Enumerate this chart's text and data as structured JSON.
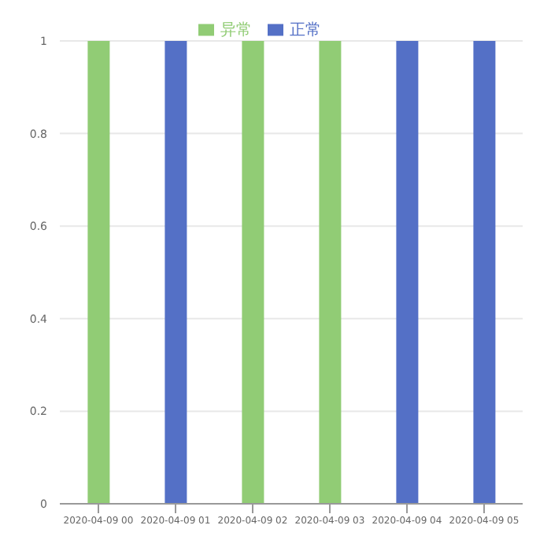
{
  "chart_data": {
    "type": "bar",
    "stacked": true,
    "categories": [
      "2020-04-09 00",
      "2020-04-09 01",
      "2020-04-09 02",
      "2020-04-09 03",
      "2020-04-09 04",
      "2020-04-09 05"
    ],
    "series": [
      {
        "name": "正常",
        "color": "#5470c6",
        "values": [
          0,
          1,
          0,
          0,
          1,
          1
        ]
      },
      {
        "name": "异常",
        "color": "#91cc75",
        "values": [
          1,
          0,
          1,
          1,
          0,
          0
        ]
      }
    ],
    "ylim": [
      0,
      1
    ],
    "yticks": [
      0,
      0.2,
      0.4,
      0.6,
      0.8,
      1
    ],
    "grid": "y",
    "legend": "top"
  }
}
